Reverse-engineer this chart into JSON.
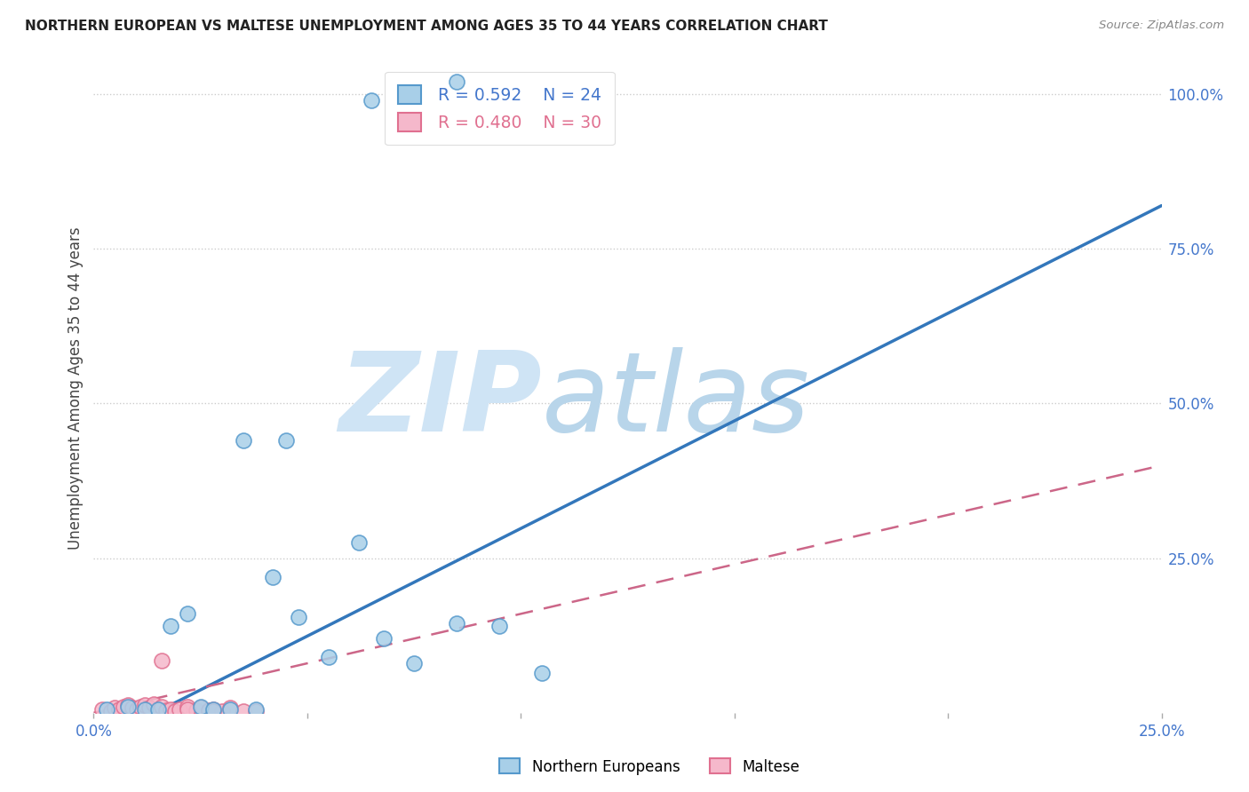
{
  "title": "NORTHERN EUROPEAN VS MALTESE UNEMPLOYMENT AMONG AGES 35 TO 44 YEARS CORRELATION CHART",
  "source": "Source: ZipAtlas.com",
  "ylabel": "Unemployment Among Ages 35 to 44 years",
  "xlim": [
    0.0,
    0.25
  ],
  "ylim": [
    0.0,
    1.05
  ],
  "blue_color": "#a8cfe8",
  "blue_edge_color": "#5599cc",
  "pink_color": "#f5b8cb",
  "pink_edge_color": "#e07090",
  "blue_line_color": "#3377bb",
  "pink_line_color": "#cc6688",
  "watermark_zip_color": "#c8dff0",
  "watermark_atlas_color": "#b8d5ec",
  "blue_scatter_x": [
    0.035,
    0.045,
    0.003,
    0.008,
    0.012,
    0.015,
    0.018,
    0.022,
    0.025,
    0.028,
    0.032,
    0.038,
    0.042,
    0.048,
    0.055,
    0.062,
    0.068,
    0.075,
    0.085,
    0.095,
    0.105,
    0.065,
    0.085
  ],
  "blue_scatter_y": [
    0.44,
    0.44,
    0.005,
    0.01,
    0.005,
    0.005,
    0.14,
    0.16,
    0.01,
    0.005,
    0.005,
    0.005,
    0.22,
    0.155,
    0.09,
    0.275,
    0.12,
    0.08,
    0.145,
    0.14,
    0.065,
    0.99,
    1.02
  ],
  "pink_scatter_x": [
    0.002,
    0.004,
    0.005,
    0.006,
    0.007,
    0.008,
    0.009,
    0.01,
    0.011,
    0.012,
    0.013,
    0.014,
    0.015,
    0.016,
    0.017,
    0.018,
    0.019,
    0.02,
    0.022,
    0.024,
    0.025,
    0.027,
    0.028,
    0.03,
    0.032,
    0.035,
    0.038,
    0.016,
    0.022,
    0.028
  ],
  "pink_scatter_y": [
    0.005,
    0.003,
    0.008,
    0.006,
    0.01,
    0.012,
    0.008,
    0.006,
    0.01,
    0.012,
    0.008,
    0.014,
    0.003,
    0.01,
    0.004,
    0.006,
    0.003,
    0.006,
    0.01,
    0.004,
    0.008,
    0.004,
    0.006,
    0.003,
    0.008,
    0.003,
    0.003,
    0.085,
    0.006,
    0.003
  ],
  "blue_line_x": [
    0.0,
    0.25
  ],
  "blue_line_y": [
    -0.05,
    0.82
  ],
  "pink_line_x": [
    0.0,
    0.25
  ],
  "pink_line_y": [
    0.0,
    0.4
  ]
}
